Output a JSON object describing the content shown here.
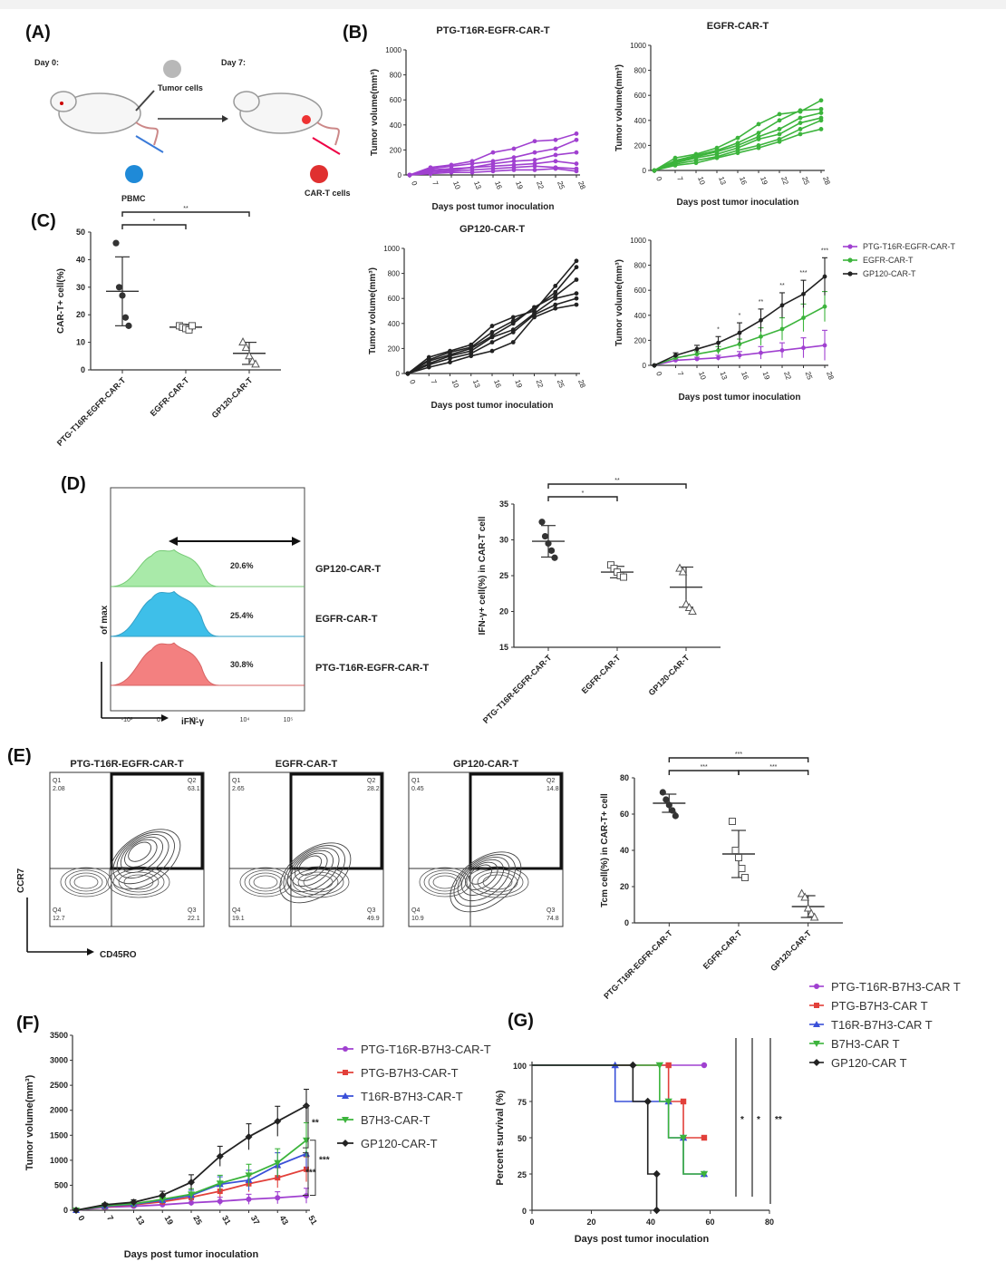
{
  "panels": {
    "A": {
      "label": "(A)",
      "day0": "Day 0:",
      "day7": "Day 7:",
      "tumor_cells": "Tumor cells",
      "pbmc": "PBMC",
      "cart_cells": "CAR-T cells"
    },
    "B": {
      "label": "(B)",
      "xlabel": "Days post tumor inoculation",
      "ylabel": "Tumor volume(mm³)"
    },
    "C": {
      "label": "(C)"
    },
    "D": {
      "label": "(D)"
    },
    "E": {
      "label": "(E)"
    },
    "F": {
      "label": "(F)"
    },
    "G": {
      "label": "(G)"
    }
  },
  "colors": {
    "purple": "#a040d0",
    "green": "#3cb43c",
    "black": "#222222",
    "red": "#e2403a",
    "blue": "#3a50d8",
    "lightgreen": "#6fd86f",
    "cyan": "#1db4e6",
    "flow_green": "#9be79b",
    "flow_red": "#f26a6a"
  },
  "chart_data": [
    {
      "id": "B1",
      "type": "line",
      "title": "PTG-T16R-EGFR-CAR-T",
      "xlabel": "Days post tumor inoculation",
      "ylabel": "Tumor volume(mm³)",
      "categories": [
        "0",
        "7",
        "10",
        "13",
        "16",
        "19",
        "22",
        "25",
        "28"
      ],
      "ylim": [
        0,
        1000
      ],
      "yticks": [
        "0",
        "200",
        "400",
        "600",
        "800",
        "1000"
      ],
      "color": "#a040d0",
      "series": [
        {
          "values": [
            0,
            60,
            80,
            110,
            180,
            210,
            270,
            280,
            330
          ]
        },
        {
          "values": [
            0,
            50,
            70,
            90,
            110,
            140,
            180,
            210,
            280
          ]
        },
        {
          "values": [
            0,
            40,
            50,
            60,
            90,
            110,
            120,
            160,
            180
          ]
        },
        {
          "values": [
            0,
            30,
            40,
            60,
            70,
            80,
            90,
            110,
            90
          ]
        },
        {
          "values": [
            0,
            20,
            30,
            40,
            50,
            60,
            70,
            60,
            50
          ]
        },
        {
          "values": [
            0,
            10,
            20,
            20,
            30,
            40,
            40,
            50,
            30
          ]
        }
      ]
    },
    {
      "id": "B2",
      "type": "line",
      "title": "EGFR-CAR-T",
      "xlabel": "Days post tumor inoculation",
      "ylabel": "Tumor volume(mm³)",
      "categories": [
        "0",
        "7",
        "10",
        "13",
        "16",
        "19",
        "22",
        "25",
        "28"
      ],
      "ylim": [
        0,
        1000
      ],
      "yticks": [
        "0",
        "200",
        "400",
        "600",
        "800",
        "1000"
      ],
      "color": "#3cb43c",
      "series": [
        {
          "values": [
            0,
            100,
            130,
            180,
            260,
            370,
            450,
            470,
            560
          ]
        },
        {
          "values": [
            0,
            80,
            120,
            160,
            220,
            300,
            400,
            480,
            490
          ]
        },
        {
          "values": [
            0,
            70,
            110,
            150,
            200,
            270,
            330,
            420,
            460
          ]
        },
        {
          "values": [
            0,
            60,
            100,
            130,
            180,
            250,
            290,
            380,
            420
          ]
        },
        {
          "values": [
            0,
            50,
            80,
            110,
            160,
            200,
            250,
            330,
            400
          ]
        },
        {
          "values": [
            0,
            40,
            60,
            100,
            140,
            180,
            230,
            290,
            330
          ]
        }
      ]
    },
    {
      "id": "B3",
      "type": "line",
      "title": "GP120-CAR-T",
      "xlabel": "Days post tumor inoculation",
      "ylabel": "Tumor volume(mm³)",
      "categories": [
        "0",
        "7",
        "10",
        "13",
        "16",
        "19",
        "22",
        "25",
        "28"
      ],
      "ylim": [
        0,
        1000
      ],
      "yticks": [
        "0",
        "200",
        "400",
        "600",
        "800",
        "1000"
      ],
      "color": "#222222",
      "series": [
        {
          "values": [
            0,
            130,
            180,
            230,
            380,
            450,
            500,
            700,
            900
          ]
        },
        {
          "values": [
            0,
            110,
            170,
            210,
            330,
            420,
            520,
            650,
            850
          ]
        },
        {
          "values": [
            0,
            100,
            150,
            200,
            300,
            400,
            530,
            620,
            750
          ]
        },
        {
          "values": [
            0,
            80,
            140,
            180,
            290,
            350,
            480,
            600,
            640
          ]
        },
        {
          "values": [
            0,
            70,
            120,
            160,
            250,
            330,
            470,
            550,
            600
          ]
        },
        {
          "values": [
            0,
            50,
            90,
            140,
            180,
            250,
            450,
            520,
            550
          ]
        }
      ]
    },
    {
      "id": "B4",
      "type": "line",
      "title": "",
      "xlabel": "Days post tumor inoculation",
      "ylabel": "Tumor volume(mm³)",
      "categories": [
        "0",
        "7",
        "10",
        "13",
        "16",
        "19",
        "22",
        "25",
        "28"
      ],
      "ylim": [
        0,
        1000
      ],
      "yticks": [
        "0",
        "200",
        "400",
        "600",
        "800",
        "1000"
      ],
      "significance": [
        "",
        "",
        "",
        "*",
        "*",
        "**",
        "**",
        "***",
        "***"
      ],
      "legend": [
        "PTG-T16R-EGFR-CAR-T",
        "EGFR-CAR-T",
        "GP120-CAR-T"
      ],
      "series": [
        {
          "name": "PTG-T16R-EGFR-CAR-T",
          "color": "#a040d0",
          "values": [
            0,
            40,
            50,
            60,
            80,
            100,
            120,
            140,
            160
          ],
          "err": [
            0,
            10,
            15,
            20,
            30,
            50,
            60,
            80,
            120
          ]
        },
        {
          "name": "EGFR-CAR-T",
          "color": "#3cb43c",
          "values": [
            0,
            60,
            90,
            120,
            170,
            230,
            290,
            380,
            470
          ],
          "err": [
            0,
            15,
            20,
            30,
            40,
            70,
            90,
            110,
            120
          ]
        },
        {
          "name": "GP120-CAR-T",
          "color": "#222222",
          "values": [
            0,
            80,
            130,
            180,
            260,
            360,
            480,
            570,
            710
          ],
          "err": [
            0,
            20,
            30,
            50,
            80,
            90,
            100,
            110,
            150
          ]
        }
      ]
    },
    {
      "id": "C",
      "type": "scatter",
      "ylabel": "CAR-T+ cell(%)",
      "categories": [
        "PTG-T16R-EGFR-CAR-T",
        "EGFR-CAR-T",
        "GP120-CAR-T"
      ],
      "ylim": [
        0,
        50
      ],
      "yticks": [
        "0",
        "10",
        "20",
        "30",
        "40",
        "50"
      ],
      "points": [
        [
          46,
          30,
          27,
          19,
          16
        ],
        [
          16,
          15.5,
          15,
          14.5,
          16
        ],
        [
          10,
          8,
          5,
          3,
          2
        ]
      ],
      "mean": [
        28.5,
        15.5,
        6
      ],
      "sd": [
        12.5,
        1,
        4
      ],
      "significance": [
        {
          "from": 0,
          "to": 1,
          "text": "*"
        },
        {
          "from": 0,
          "to": 2,
          "text": "**"
        }
      ]
    },
    {
      "id": "D_bar",
      "type": "scatter",
      "ylabel": "IFN-γ+ cell(%) in CAR-T cell",
      "categories": [
        "PTG-T16R-EGFR-CAR-T",
        "EGFR-CAR-T",
        "GP120-CAR-T"
      ],
      "ylim": [
        15,
        35
      ],
      "yticks": [
        "15",
        "20",
        "25",
        "30",
        "35"
      ],
      "points": [
        [
          32.5,
          30.5,
          29.5,
          28.5,
          27.5
        ],
        [
          26.5,
          26,
          25.5,
          25,
          24.8
        ],
        [
          26,
          25.5,
          21,
          20.5,
          20
        ]
      ],
      "mean": [
        29.8,
        25.5,
        23.4
      ],
      "sd": [
        2.2,
        0.8,
        2.8
      ],
      "significance": [
        {
          "from": 0,
          "to": 1,
          "text": "*"
        },
        {
          "from": 0,
          "to": 2,
          "text": "**"
        }
      ]
    },
    {
      "id": "D_flow",
      "type": "area",
      "xlabel": "iFN-γ",
      "ylabel": "of max",
      "xticks": [
        "-10³",
        "0",
        "10³",
        "10⁴",
        "10⁵"
      ],
      "samples": [
        {
          "name": "GP120-CAR-T",
          "value": "20.6%"
        },
        {
          "name": "EGFR-CAR-T",
          "value": "25.4%"
        },
        {
          "name": "PTG-T16R-EGFR-CAR-T",
          "value": "30.8%"
        }
      ]
    },
    {
      "id": "E_flow",
      "type": "scatter",
      "xlabel": "CD45RO",
      "ylabel": "CCR7",
      "plots": [
        {
          "title": "PTG-T16R-EGFR-CAR-T",
          "q1": "Q1",
          "q1v": "2.08",
          "q2": "Q2",
          "q2v": "63.1",
          "q3": "Q3",
          "q3v": "22.1",
          "q4": "Q4",
          "q4v": "12.7"
        },
        {
          "title": "EGFR-CAR-T",
          "q1": "Q1",
          "q1v": "2.65",
          "q2": "Q2",
          "q2v": "28.2",
          "q3": "Q3",
          "q3v": "49.9",
          "q4": "Q4",
          "q4v": "19.1"
        },
        {
          "title": "GP120-CAR-T",
          "q1": "Q1",
          "q1v": "0.45",
          "q2": "Q2",
          "q2v": "14.8",
          "q3": "Q3",
          "q3v": "74.8",
          "q4": "Q4",
          "q4v": "10.9"
        }
      ]
    },
    {
      "id": "E_bar",
      "type": "scatter",
      "ylabel": "Tcm cell(%) in CAR-T+ cell",
      "categories": [
        "PTG-T16R-EGFR-CAR-T",
        "EGFR-CAR-T",
        "GP120-CAR-T"
      ],
      "ylim": [
        0,
        80
      ],
      "yticks": [
        "0",
        "20",
        "40",
        "60",
        "80"
      ],
      "points": [
        [
          72,
          68,
          65,
          62,
          59
        ],
        [
          56,
          40,
          36,
          30,
          25
        ],
        [
          16,
          14,
          8,
          5,
          3
        ]
      ],
      "mean": [
        66,
        38,
        9
      ],
      "sd": [
        5,
        13,
        6
      ],
      "significance": [
        {
          "from": 0,
          "to": 1,
          "text": "***"
        },
        {
          "from": 1,
          "to": 2,
          "text": "***"
        },
        {
          "from": 0,
          "to": 2,
          "text": "***"
        }
      ]
    },
    {
      "id": "F",
      "type": "line",
      "xlabel": "Days post tumor inoculation",
      "ylabel": "Tumor volume(mm³)",
      "categories": [
        "0",
        "7",
        "13",
        "19",
        "25",
        "31",
        "37",
        "43",
        "51"
      ],
      "ylim": [
        0,
        3500
      ],
      "yticks": [
        "0",
        "500",
        "1000",
        "1500",
        "2000",
        "2500",
        "3000",
        "3500"
      ],
      "significance_labels": [
        "**",
        "***",
        "***"
      ],
      "series": [
        {
          "name": "PTG-T16R-B7H3-CAR-T",
          "color": "#a040d0",
          "marker": "circle",
          "values": [
            0,
            60,
            80,
            110,
            150,
            180,
            220,
            250,
            290
          ],
          "err": [
            0,
            20,
            30,
            40,
            60,
            80,
            100,
            120,
            150
          ]
        },
        {
          "name": "PTG-B7H3-CAR-T",
          "color": "#e2403a",
          "marker": "square",
          "values": [
            0,
            70,
            110,
            170,
            260,
            380,
            530,
            650,
            820
          ],
          "err": [
            0,
            20,
            40,
            60,
            80,
            120,
            160,
            200,
            250
          ]
        },
        {
          "name": "T16R-B7H3-CAR-T",
          "color": "#3a50d8",
          "marker": "triangle",
          "values": [
            0,
            80,
            120,
            200,
            300,
            520,
            600,
            900,
            1130
          ],
          "err": [
            0,
            30,
            50,
            70,
            100,
            150,
            200,
            250,
            300
          ]
        },
        {
          "name": "B7H3-CAR-T",
          "color": "#3cb43c",
          "marker": "inv-triangle",
          "values": [
            0,
            90,
            130,
            220,
            320,
            540,
            700,
            950,
            1400
          ],
          "err": [
            0,
            30,
            50,
            80,
            110,
            160,
            220,
            280,
            350
          ]
        },
        {
          "name": "GP120-CAR-T",
          "color": "#222222",
          "marker": "diamond",
          "values": [
            0,
            110,
            160,
            300,
            560,
            1080,
            1470,
            1780,
            2090
          ],
          "err": [
            0,
            30,
            50,
            80,
            150,
            200,
            260,
            300,
            330
          ]
        }
      ]
    },
    {
      "id": "G",
      "type": "line",
      "xlabel": "Days post tumor inoculation",
      "ylabel": "Percent survival (%)",
      "xticks": [
        "0",
        "20",
        "40",
        "60",
        "80"
      ],
      "xlim": [
        0,
        80
      ],
      "yticks": [
        "0",
        "25",
        "50",
        "75",
        "100"
      ],
      "ylim": [
        0,
        100
      ],
      "significance_labels": [
        "*",
        "*",
        "**"
      ],
      "series": [
        {
          "name": "PTG-T16R-B7H3-CAR T",
          "color": "#a040d0",
          "marker": "circle",
          "steps": [
            [
              0,
              100
            ],
            [
              58,
              100
            ]
          ]
        },
        {
          "name": "PTG-B7H3-CAR T",
          "color": "#e2403a",
          "marker": "square",
          "steps": [
            [
              0,
              100
            ],
            [
              46,
              100
            ],
            [
              46,
              75
            ],
            [
              51,
              75
            ],
            [
              51,
              50
            ],
            [
              58,
              50
            ]
          ]
        },
        {
          "name": "T16R-B7H3-CAR T",
          "color": "#3a50d8",
          "marker": "triangle",
          "steps": [
            [
              0,
              100
            ],
            [
              28,
              100
            ],
            [
              28,
              75
            ],
            [
              46,
              75
            ],
            [
              46,
              50
            ],
            [
              51,
              50
            ],
            [
              51,
              25
            ],
            [
              58,
              25
            ]
          ]
        },
        {
          "name": "B7H3-CAR T",
          "color": "#3cb43c",
          "marker": "inv-triangle",
          "steps": [
            [
              0,
              100
            ],
            [
              43,
              100
            ],
            [
              43,
              75
            ],
            [
              46,
              75
            ],
            [
              46,
              50
            ],
            [
              51,
              50
            ],
            [
              51,
              25
            ],
            [
              58,
              25
            ]
          ]
        },
        {
          "name": "GP120-CAR T",
          "color": "#222222",
          "marker": "diamond",
          "steps": [
            [
              0,
              100
            ],
            [
              34,
              100
            ],
            [
              34,
              75
            ],
            [
              39,
              75
            ],
            [
              39,
              25
            ],
            [
              42,
              25
            ],
            [
              42,
              0
            ]
          ]
        }
      ]
    }
  ]
}
